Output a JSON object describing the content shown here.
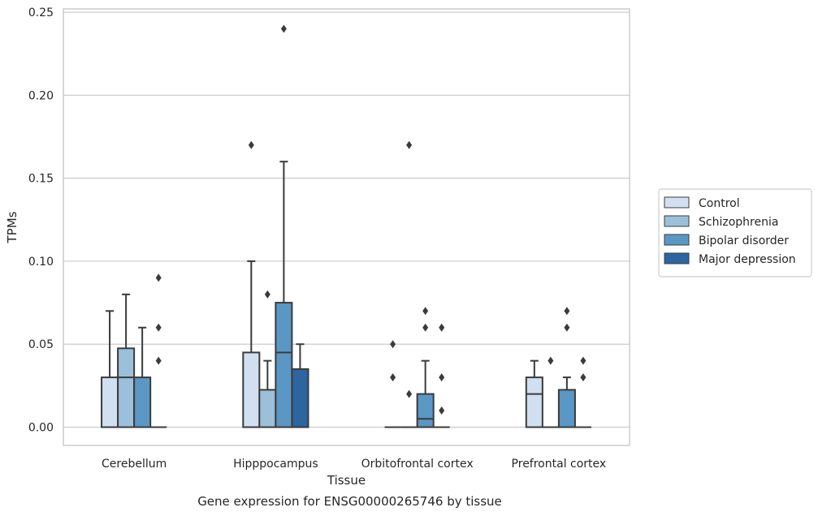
{
  "caption": "Gene expression for ENSG00000265746 by tissue",
  "chart_data": {
    "type": "boxplot",
    "xlabel": "Tissue",
    "ylabel": "TPMs",
    "ylim": [
      -0.011,
      0.252
    ],
    "yticks": [
      "0.00",
      "0.05",
      "0.10",
      "0.15",
      "0.20",
      "0.25"
    ],
    "ytick_values": [
      0,
      0.05,
      0.1,
      0.15,
      0.2,
      0.25
    ],
    "grid": "horizontal",
    "legend_position": "right",
    "categories": [
      "Cerebellum",
      "Hipppocampus",
      "Orbitofrontal cortex",
      "Prefrontal cortex"
    ],
    "series": [
      {
        "name": "Control",
        "color": "#d1e0f0",
        "boxes": [
          {
            "q1": 0,
            "median": 0,
            "q3": 0.03,
            "whisker_low": 0,
            "whisker_high": 0.07,
            "outliers": []
          },
          {
            "q1": 0,
            "median": 0,
            "q3": 0.045,
            "whisker_low": 0,
            "whisker_high": 0.1,
            "outliers": [
              0.17
            ]
          },
          {
            "q1": 0,
            "median": 0,
            "q3": 0,
            "whisker_low": 0,
            "whisker_high": 0,
            "outliers": [
              0.03,
              0.05
            ]
          },
          {
            "q1": 0,
            "median": 0.02,
            "q3": 0.03,
            "whisker_low": 0,
            "whisker_high": 0.04,
            "outliers": []
          }
        ]
      },
      {
        "name": "Schizophrenia",
        "color": "#9cc0da",
        "boxes": [
          {
            "q1": 0,
            "median": 0.03,
            "q3": 0.0475,
            "whisker_low": 0,
            "whisker_high": 0.08,
            "outliers": []
          },
          {
            "q1": 0,
            "median": 0,
            "q3": 0.0225,
            "whisker_low": 0,
            "whisker_high": 0.04,
            "outliers": [
              0.08
            ]
          },
          {
            "q1": 0,
            "median": 0,
            "q3": 0,
            "whisker_low": 0,
            "whisker_high": 0,
            "outliers": [
              0.02,
              0.17
            ]
          },
          {
            "q1": 0,
            "median": 0,
            "q3": 0,
            "whisker_low": 0,
            "whisker_high": 0,
            "outliers": [
              0.04
            ]
          }
        ]
      },
      {
        "name": "Bipolar disorder",
        "color": "#5b97c5",
        "boxes": [
          {
            "q1": 0,
            "median": 0,
            "q3": 0.03,
            "whisker_low": 0,
            "whisker_high": 0.06,
            "outliers": []
          },
          {
            "q1": 0,
            "median": 0.045,
            "q3": 0.075,
            "whisker_low": 0,
            "whisker_high": 0.16,
            "outliers": [
              0.24
            ]
          },
          {
            "q1": 0,
            "median": 0.005,
            "q3": 0.02,
            "whisker_low": 0,
            "whisker_high": 0.04,
            "outliers": [
              0.06,
              0.07
            ]
          },
          {
            "q1": 0,
            "median": 0,
            "q3": 0.0225,
            "whisker_low": 0,
            "whisker_high": 0.03,
            "outliers": [
              0.06,
              0.07
            ]
          }
        ]
      },
      {
        "name": "Major depression",
        "color": "#2c65a0",
        "boxes": [
          {
            "q1": 0,
            "median": 0,
            "q3": 0,
            "whisker_low": 0,
            "whisker_high": 0,
            "outliers": [
              0.04,
              0.06,
              0.09
            ]
          },
          {
            "q1": 0,
            "median": 0,
            "q3": 0.035,
            "whisker_low": 0,
            "whisker_high": 0.05,
            "outliers": []
          },
          {
            "q1": 0,
            "median": 0,
            "q3": 0,
            "whisker_low": 0,
            "whisker_high": 0,
            "outliers": [
              0.01,
              0.03,
              0.06
            ]
          },
          {
            "q1": 0,
            "median": 0,
            "q3": 0,
            "whisker_low": 0,
            "whisker_high": 0,
            "outliers": [
              0.03,
              0.04
            ]
          }
        ]
      }
    ]
  }
}
